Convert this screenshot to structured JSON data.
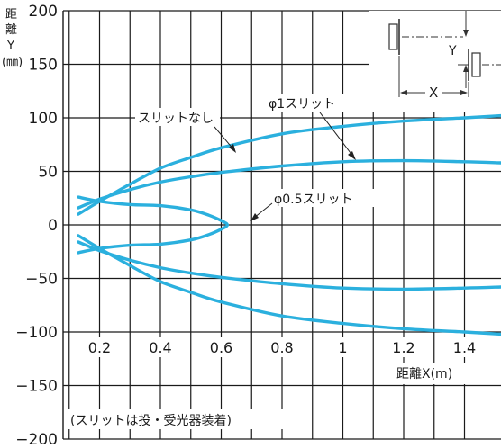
{
  "chart_data": {
    "type": "line",
    "title": "",
    "xlabel": "距離X(m)",
    "ylabel_lines": [
      "距",
      "離",
      "Y",
      "(㎜)"
    ],
    "xlim": [
      0.08,
      1.52
    ],
    "ylim": [
      -200,
      200
    ],
    "x_ticks": [
      {
        "value": 0.2,
        "label": "0.2"
      },
      {
        "value": 0.4,
        "label": "0.4"
      },
      {
        "value": 0.6,
        "label": "0.6"
      },
      {
        "value": 0.8,
        "label": "0.8"
      },
      {
        "value": 1.0,
        "label": "1"
      },
      {
        "value": 1.2,
        "label": "1.2"
      },
      {
        "value": 1.4,
        "label": "1.4"
      }
    ],
    "y_ticks": [
      {
        "value": 200,
        "label": "200"
      },
      {
        "value": 150,
        "label": "150"
      },
      {
        "value": 100,
        "label": "100"
      },
      {
        "value": 50,
        "label": "50"
      },
      {
        "value": 0,
        "label": "0"
      },
      {
        "value": -50,
        "label": "−50"
      },
      {
        "value": -100,
        "label": "−100"
      },
      {
        "value": -150,
        "label": "−150"
      },
      {
        "value": -200,
        "label": "−200"
      }
    ],
    "grid": true,
    "series": [
      {
        "name": "スリットなし",
        "color": "#2bb0de",
        "upper": [
          [
            0.13,
            10
          ],
          [
            0.2,
            22
          ],
          [
            0.3,
            38
          ],
          [
            0.4,
            53
          ],
          [
            0.5,
            63
          ],
          [
            0.6,
            72
          ],
          [
            0.8,
            85
          ],
          [
            1.0,
            92
          ],
          [
            1.2,
            97
          ],
          [
            1.4,
            100
          ],
          [
            1.52,
            102
          ]
        ],
        "lower": [
          [
            0.13,
            -10
          ],
          [
            0.2,
            -22
          ],
          [
            0.3,
            -38
          ],
          [
            0.4,
            -53
          ],
          [
            0.5,
            -63
          ],
          [
            0.6,
            -72
          ],
          [
            0.8,
            -85
          ],
          [
            1.0,
            -92
          ],
          [
            1.2,
            -97
          ],
          [
            1.4,
            -100
          ],
          [
            1.52,
            -102
          ]
        ]
      },
      {
        "name": "φ1スリット",
        "color": "#2bb0de",
        "upper": [
          [
            0.13,
            16
          ],
          [
            0.2,
            24
          ],
          [
            0.3,
            33
          ],
          [
            0.4,
            40
          ],
          [
            0.5,
            45
          ],
          [
            0.6,
            49
          ],
          [
            0.8,
            55
          ],
          [
            1.0,
            59
          ],
          [
            1.2,
            60
          ],
          [
            1.4,
            59
          ],
          [
            1.52,
            58
          ]
        ],
        "lower": [
          [
            0.13,
            -16
          ],
          [
            0.2,
            -24
          ],
          [
            0.3,
            -33
          ],
          [
            0.4,
            -40
          ],
          [
            0.5,
            -45
          ],
          [
            0.6,
            -49
          ],
          [
            0.8,
            -55
          ],
          [
            1.0,
            -59
          ],
          [
            1.2,
            -60
          ],
          [
            1.4,
            -59
          ],
          [
            1.52,
            -58
          ]
        ]
      },
      {
        "name": "φ0.5スリット",
        "color": "#2bb0de",
        "upper": [
          [
            0.13,
            26
          ],
          [
            0.2,
            22
          ],
          [
            0.3,
            19
          ],
          [
            0.4,
            18
          ],
          [
            0.5,
            14
          ],
          [
            0.56,
            9
          ],
          [
            0.6,
            4
          ],
          [
            0.62,
            0
          ]
        ],
        "lower": [
          [
            0.13,
            -26
          ],
          [
            0.2,
            -22
          ],
          [
            0.3,
            -19
          ],
          [
            0.4,
            -18
          ],
          [
            0.5,
            -14
          ],
          [
            0.56,
            -9
          ],
          [
            0.6,
            -4
          ],
          [
            0.62,
            0
          ]
        ]
      }
    ],
    "annotations": {
      "no_slit": "スリットなし",
      "slit_1": "φ1スリット",
      "slit_05": "φ0.5スリット",
      "note": "(スリットは投・受光器装着)",
      "inset_y": "Y",
      "inset_x": "X"
    }
  }
}
